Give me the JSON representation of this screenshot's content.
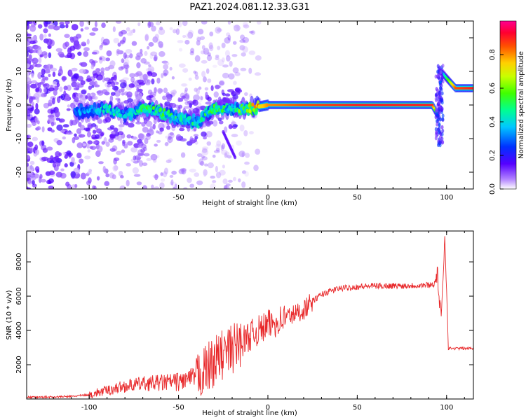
{
  "title": "PAZ1.2024.081.12.33.G31",
  "colors": {
    "snr_line": "#e8282a",
    "spectrogram_scale": [
      "#ffffff",
      "#ead8ff",
      "#8a2be2",
      "#3300ff",
      "#0044ff",
      "#00c8ff",
      "#00ff66",
      "#66ff00",
      "#ffee00",
      "#ff8800",
      "#ff2200",
      "#ff0066"
    ]
  },
  "chart_data": [
    {
      "type": "heatmap",
      "xlabel": "Height of straight line (km)",
      "ylabel": "Frequency (Hz)",
      "xlim": [
        -135,
        115
      ],
      "ylim": [
        -25,
        25
      ],
      "xticks": [
        -100,
        -50,
        0,
        50,
        100
      ],
      "yticks": [
        -20,
        -10,
        0,
        10,
        20
      ],
      "grid": false,
      "colorbar": {
        "label": "Normalized spectral amplitude",
        "range": [
          0,
          1
        ],
        "ticks": [
          "0.0",
          "0.2",
          "0.4",
          "0.6",
          "0.8"
        ],
        "tick_values": [
          0.0,
          0.2,
          0.4,
          0.6,
          0.8
        ]
      },
      "ridge": {
        "x": [
          -100,
          -90,
          -80,
          -70,
          -60,
          -50,
          -40,
          -30,
          -20,
          -10,
          0,
          20,
          50,
          80,
          92,
          95,
          97,
          100,
          105,
          115
        ],
        "frequency_hz": [
          -2,
          -1,
          -3,
          -1,
          -2,
          -4,
          -5,
          -1,
          -1,
          -1,
          0,
          0,
          0,
          0,
          0,
          -3,
          10,
          8,
          5,
          5
        ],
        "amplitude": [
          0.3,
          0.4,
          0.35,
          0.45,
          0.45,
          0.4,
          0.4,
          0.45,
          0.4,
          0.6,
          0.8,
          0.85,
          0.9,
          0.9,
          0.9,
          0.3,
          0.3,
          0.5,
          0.85,
          0.9
        ]
      }
    },
    {
      "type": "line",
      "xlabel": "Height of straight line (km)",
      "ylabel": "SNR (10 * v/v)",
      "xlim": [
        -135,
        115
      ],
      "ylim": [
        0,
        9800
      ],
      "xticks": [
        -100,
        -50,
        0,
        50,
        100
      ],
      "yticks": [
        2000,
        4000,
        6000,
        8000
      ],
      "grid": false,
      "series": [
        {
          "x": [
            -135,
            -120,
            -110,
            -100,
            -90,
            -80,
            -70,
            -60,
            -50,
            -45,
            -40,
            -35,
            -30,
            -25,
            -20,
            -15,
            -10,
            -5,
            0,
            5,
            10,
            15,
            20,
            25,
            30,
            35,
            40,
            50,
            60,
            70,
            80,
            90,
            93,
            95,
            96,
            97,
            98,
            99,
            100,
            101,
            115
          ],
          "y": [
            100,
            120,
            150,
            250,
            500,
            750,
            900,
            950,
            1000,
            1150,
            1300,
            1700,
            2200,
            2600,
            2900,
            3300,
            3700,
            4000,
            4300,
            4500,
            4800,
            4950,
            5200,
            5700,
            6100,
            6300,
            6450,
            6550,
            6600,
            6600,
            6620,
            6650,
            6700,
            7300,
            5500,
            4800,
            6800,
            9700,
            6400,
            2950,
            2950
          ]
        }
      ]
    }
  ]
}
